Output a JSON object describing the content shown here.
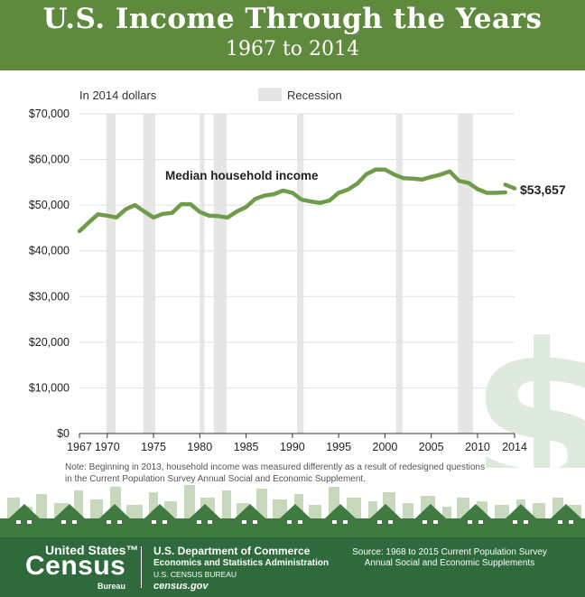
{
  "header": {
    "title": "U.S. Income Through the Years",
    "subtitle": "1967 to 2014"
  },
  "colors": {
    "header_bg": "#5f8a3d",
    "line": "#6e9c48",
    "recession": "#e6e6e6",
    "grid": "#e1e1e1",
    "footer_bg": "#2e6a3c",
    "skyline_light": "#c7d8bd",
    "skyline_dark": "#3f7a40",
    "dollar_sign": "#dfeadf"
  },
  "chart_data": {
    "type": "line",
    "title": "U.S. Income Through the Years",
    "subtitle": "1967 to 2014",
    "ylabel": "In 2014 dollars",
    "xlabel": "",
    "xlim": [
      1967,
      2014
    ],
    "ylim": [
      0,
      70000
    ],
    "x_ticks": [
      1967,
      1970,
      1975,
      1980,
      1985,
      1990,
      1995,
      2000,
      2005,
      2010,
      2014
    ],
    "x_tick_labels": [
      "1967",
      "1970",
      "1975",
      "1980",
      "1985",
      "1990",
      "1995",
      "2000",
      "2005",
      "2010",
      "2014"
    ],
    "y_ticks": [
      0,
      10000,
      20000,
      30000,
      40000,
      50000,
      60000,
      70000
    ],
    "y_tick_labels": [
      "$0",
      "$10,000",
      "$20,000",
      "$30,000",
      "$40,000",
      "$50,000",
      "$60,000",
      "$70,000"
    ],
    "grid": true,
    "legend": {
      "label": "Recession",
      "position": "top-center"
    },
    "recessions": [
      [
        1969.9,
        1970.9
      ],
      [
        1973.9,
        1975.2
      ],
      [
        1980.0,
        1980.5
      ],
      [
        1981.5,
        1982.9
      ],
      [
        1990.5,
        1991.2
      ],
      [
        2001.2,
        2001.9
      ],
      [
        2007.9,
        2009.5
      ]
    ],
    "series": [
      {
        "name": "Median household income",
        "x": [
          1967,
          1968,
          1969,
          1970,
          1971,
          1972,
          1973,
          1974,
          1975,
          1976,
          1977,
          1978,
          1979,
          1980,
          1981,
          1982,
          1983,
          1984,
          1985,
          1986,
          1987,
          1988,
          1989,
          1990,
          1991,
          1992,
          1993,
          1994,
          1995,
          1996,
          1997,
          1998,
          1999,
          2000,
          2001,
          2002,
          2003,
          2004,
          2005,
          2006,
          2007,
          2008,
          2009,
          2010,
          2011,
          2012,
          2013
        ],
        "y": [
          44300,
          46200,
          48000,
          47700,
          47300,
          49100,
          50000,
          48600,
          47300,
          48100,
          48300,
          50200,
          50200,
          48500,
          47700,
          47600,
          47300,
          48600,
          49600,
          51400,
          52100,
          52400,
          53200,
          52700,
          51200,
          50800,
          50500,
          51000,
          52700,
          53400,
          54700,
          56800,
          57800,
          57800,
          56700,
          55900,
          55800,
          55600,
          56200,
          56700,
          57400,
          55300,
          54900,
          53500,
          52700,
          52700,
          52800
        ]
      },
      {
        "name": "",
        "x": [
          2013,
          2014
        ],
        "y": [
          54500,
          53657
        ]
      }
    ],
    "annotations": [
      {
        "text": "Median household income"
      },
      {
        "text": "$53,657"
      }
    ]
  },
  "note": "Note: Beginning in 2013, household income was measured differently as a result of redesigned questions in the Current Population Survey Annual Social and Economic Supplement.",
  "footer": {
    "logo_us": "United States™",
    "logo_census": "Census",
    "logo_bureau": "Bureau",
    "dept": "U.S. Department of Commerce",
    "esa": "Economics and Statistics Administration",
    "bureau": "U.S. CENSUS BUREAU",
    "web": "census.gov",
    "source": "Source: 1968 to 2015 Current Population Survey Annual Social and Economic Supplements"
  }
}
